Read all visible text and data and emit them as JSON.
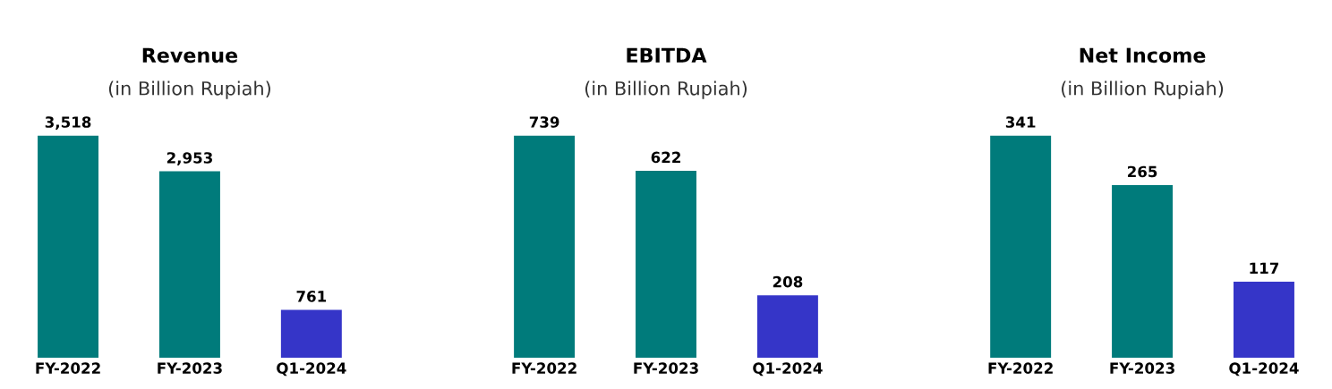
{
  "chart_data": [
    {
      "type": "bar",
      "title": "Revenue",
      "subtitle": "(in Billion Rupiah)",
      "categories": [
        "FY-2022",
        "FY-2023",
        "Q1-2024"
      ],
      "values": [
        3518,
        2953,
        761
      ],
      "value_labels": [
        "3,518",
        "2,953",
        "761"
      ],
      "colors": [
        "#007b7b",
        "#007b7b",
        "#3535c8"
      ],
      "tick_labels": "x",
      "grid": false,
      "legend": false
    },
    {
      "type": "bar",
      "title": "EBITDA",
      "subtitle": "(in Billion Rupiah)",
      "categories": [
        "FY-2022",
        "FY-2023",
        "Q1-2024"
      ],
      "values": [
        739,
        622,
        208
      ],
      "data_labels": true,
      "colors": [
        "#007b7b",
        "#007b7b",
        "#3535c8"
      ],
      "tick_labels": "x",
      "grid": false,
      "legend": false
    },
    {
      "type": "bar",
      "title": "Net Income",
      "subtitle": "(in Billion Rupiah)",
      "categories": [
        "FY-2022",
        "FY-2023",
        "Q1-2024"
      ],
      "values": [
        341,
        265,
        117
      ],
      "data_labels": true,
      "colors": [
        "#007b7b",
        "#007b7b",
        "#3535c8"
      ],
      "tick_labels": "x",
      "grid": false,
      "legend": false
    }
  ]
}
